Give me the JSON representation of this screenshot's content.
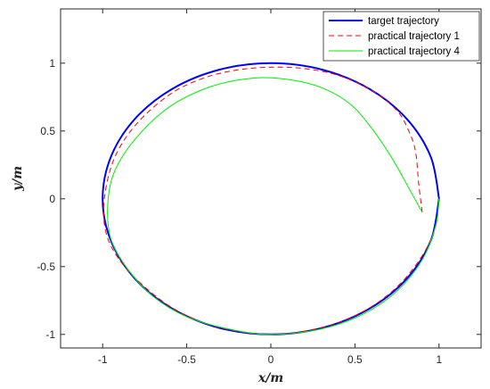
{
  "chart_data": {
    "type": "line",
    "title": "",
    "xlabel": "x/m",
    "ylabel": "y/m",
    "xlim": [
      -1.25,
      1.25
    ],
    "ylim": [
      -1.1,
      1.4
    ],
    "xticks": [
      -1,
      -0.5,
      0,
      0.5,
      1
    ],
    "xtick_labels": [
      "-1",
      "-0.5",
      "0",
      "0.5",
      "1"
    ],
    "yticks": [
      -1,
      -0.5,
      0,
      0.5,
      1
    ],
    "ytick_labels": [
      "-1",
      "-0.5",
      "0",
      "0.5",
      "1"
    ],
    "grid": false,
    "legend_position": "top-right",
    "series": [
      {
        "name": "target trajectory",
        "color": "#0000ff",
        "style": "solid",
        "x": [
          1.0,
          0.951,
          0.809,
          0.588,
          0.309,
          0.0,
          -0.309,
          -0.588,
          -0.809,
          -0.951,
          -1.0,
          -0.951,
          -0.809,
          -0.588,
          -0.309,
          0.0,
          0.309,
          0.588,
          0.809,
          0.951,
          1.0
        ],
        "y": [
          0.0,
          0.309,
          0.588,
          0.809,
          0.951,
          1.0,
          0.951,
          0.809,
          0.588,
          0.309,
          0.0,
          -0.309,
          -0.588,
          -0.809,
          -0.951,
          -1.0,
          -0.951,
          -0.809,
          -0.588,
          -0.309,
          0.0
        ]
      },
      {
        "name": "practical trajectory 1",
        "color": "#ff0000",
        "style": "dashed",
        "x": [
          0.9,
          0.88,
          0.86,
          0.82,
          0.75,
          0.6,
          0.4,
          0.2,
          0.0,
          -0.2,
          -0.4,
          -0.6,
          -0.8,
          -0.93,
          -0.99,
          -0.98,
          -0.9,
          -0.75,
          -0.55,
          -0.3,
          0.0,
          0.3,
          0.55,
          0.75,
          0.9,
          0.98,
          1.0
        ],
        "y": [
          -0.1,
          0.1,
          0.35,
          0.5,
          0.65,
          0.8,
          0.91,
          0.96,
          0.97,
          0.95,
          0.89,
          0.77,
          0.55,
          0.3,
          0.0,
          -0.25,
          -0.45,
          -0.65,
          -0.83,
          -0.95,
          -1.0,
          -0.95,
          -0.83,
          -0.65,
          -0.42,
          -0.2,
          0.0
        ]
      },
      {
        "name": "practical trajectory 4",
        "color": "#00ee00",
        "style": "solid",
        "x": [
          0.9,
          0.82,
          0.72,
          0.6,
          0.47,
          0.3,
          0.1,
          -0.1,
          -0.35,
          -0.6,
          -0.8,
          -0.93,
          -0.97,
          -0.95,
          -0.85,
          -0.7,
          -0.5,
          -0.25,
          0.0,
          0.3,
          0.55,
          0.75,
          0.9,
          0.98,
          1.0
        ],
        "y": [
          -0.1,
          0.08,
          0.3,
          0.52,
          0.7,
          0.82,
          0.88,
          0.89,
          0.83,
          0.68,
          0.45,
          0.2,
          -0.05,
          -0.3,
          -0.52,
          -0.72,
          -0.87,
          -0.96,
          -1.0,
          -0.96,
          -0.85,
          -0.68,
          -0.45,
          -0.2,
          0.0
        ]
      }
    ]
  }
}
